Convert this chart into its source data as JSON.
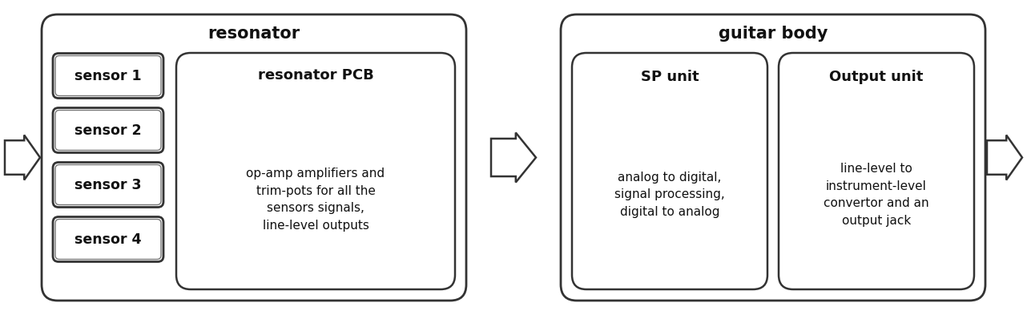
{
  "bg_color": "#ffffff",
  "box_edge_color": "#222222",
  "text_color": "#111111",
  "resonator_label": "resonator",
  "guitar_body_label": "guitar body",
  "sensor_labels": [
    "sensor 1",
    "sensor 2",
    "sensor 3",
    "sensor 4"
  ],
  "pcb_title": "resonator PCB",
  "pcb_body": "op-amp amplifiers and\ntrim-pots for all the\nsensors signals,\nline-level outputs",
  "sp_title": "SP unit",
  "sp_body": "analog to digital,\nsignal processing,\ndigital to analog",
  "out_title": "Output unit",
  "out_body": "line-level to\ninstrument-level\nconvertor and an\noutput jack",
  "fig_width": 12.82,
  "fig_height": 3.93,
  "dpi": 100
}
